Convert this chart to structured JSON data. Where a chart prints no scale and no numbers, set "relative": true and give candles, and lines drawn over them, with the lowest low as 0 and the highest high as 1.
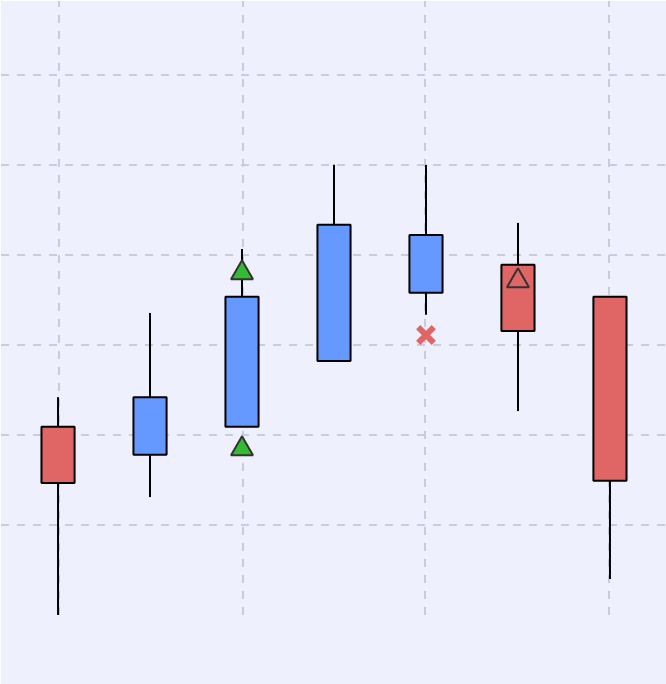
{
  "chart_data": {
    "type": "candlestick",
    "relative": true,
    "categories": [
      null,
      null,
      null,
      null,
      null,
      null,
      null
    ],
    "ohlc": [
      [
        0.418,
        0.484,
        0.0,
        0.293
      ],
      [
        0.356,
        0.671,
        0.262,
        0.484
      ],
      [
        0.418,
        0.813,
        0.418,
        0.707
      ],
      [
        0.564,
        1.0,
        0.564,
        0.867
      ],
      [
        0.716,
        1.0,
        0.667,
        0.844
      ],
      [
        0.778,
        0.871,
        0.453,
        0.631
      ],
      [
        0.707,
        0.707,
        0.08,
        0.298
      ]
    ],
    "colors": [
      "#e06666",
      "#6699ff",
      "#6699ff",
      "#6699ff",
      "#6699ff",
      "#e06666",
      "#e06666"
    ],
    "series": [
      {
        "type": "scatter",
        "marker": "triangle",
        "color": "#33bb33",
        "values": [
          null,
          null,
          0.369,
          null,
          null,
          null,
          null
        ]
      },
      {
        "type": "scatter",
        "marker": "cross",
        "color": "#e06666",
        "values": [
          null,
          null,
          null,
          null,
          0.622,
          null,
          null
        ]
      },
      {
        "type": "scatter",
        "marker": "triangle",
        "color": "#33bb33",
        "values": [
          null,
          null,
          0.76,
          null,
          null,
          null,
          null
        ]
      },
      {
        "type": "scatter",
        "marker": "triangle",
        "color": "#e06666",
        "values": [
          null,
          null,
          null,
          null,
          null,
          0.742,
          null
        ]
      }
    ],
    "grid": true,
    "tick_labels": false
  }
}
